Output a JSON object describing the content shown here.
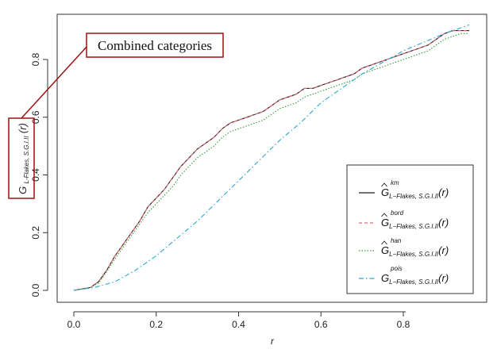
{
  "chart_data": {
    "type": "line",
    "title": "",
    "xlabel": "r",
    "ylabel": "G_{L-Flakes, S.G.I.II}(r)",
    "xlim": [
      -0.04,
      0.99
    ],
    "ylim": [
      -0.02,
      0.94
    ],
    "xticks": [
      0.0,
      0.2,
      0.4,
      0.6,
      0.8
    ],
    "yticks": [
      0.0,
      0.2,
      0.4,
      0.6,
      0.8
    ],
    "xtick_labels": [
      "0.0",
      "0.2",
      "0.4",
      "0.6",
      "0.8"
    ],
    "ytick_labels": [
      "0.0",
      "0.2",
      "0.4",
      "0.6",
      "0.8"
    ],
    "grid": false,
    "legend_position": "bottom-right",
    "series": [
      {
        "name": "km",
        "label_base": "G",
        "label_sub": "L−Flakes, S.G.I.II",
        "label_sup": "km",
        "label_arg": "(r)",
        "hat": true,
        "color": "#2a1a1a",
        "dash": "",
        "x": [
          0.0,
          0.02,
          0.04,
          0.06,
          0.08,
          0.1,
          0.12,
          0.14,
          0.16,
          0.18,
          0.2,
          0.22,
          0.24,
          0.26,
          0.28,
          0.3,
          0.32,
          0.34,
          0.36,
          0.38,
          0.4,
          0.42,
          0.44,
          0.46,
          0.48,
          0.5,
          0.52,
          0.54,
          0.56,
          0.58,
          0.6,
          0.62,
          0.64,
          0.66,
          0.68,
          0.7,
          0.72,
          0.74,
          0.76,
          0.78,
          0.8,
          0.82,
          0.84,
          0.86,
          0.88,
          0.9,
          0.92,
          0.94,
          0.96
        ],
        "y": [
          0.0,
          0.005,
          0.01,
          0.03,
          0.07,
          0.12,
          0.16,
          0.2,
          0.24,
          0.29,
          0.32,
          0.35,
          0.39,
          0.43,
          0.46,
          0.49,
          0.51,
          0.53,
          0.56,
          0.58,
          0.59,
          0.6,
          0.61,
          0.62,
          0.64,
          0.66,
          0.67,
          0.68,
          0.7,
          0.7,
          0.71,
          0.72,
          0.73,
          0.74,
          0.75,
          0.77,
          0.78,
          0.79,
          0.8,
          0.81,
          0.82,
          0.83,
          0.84,
          0.85,
          0.87,
          0.89,
          0.9,
          0.9,
          0.9
        ]
      },
      {
        "name": "bord",
        "label_base": "G",
        "label_sub": "L−Flakes, S.G.I.II",
        "label_sup": "bord",
        "label_arg": "(r)",
        "hat": true,
        "color": "#e06670",
        "dash": "4,3",
        "x": [
          0.0,
          0.02,
          0.04,
          0.06,
          0.08,
          0.1,
          0.12,
          0.14,
          0.16,
          0.18,
          0.2,
          0.22,
          0.24,
          0.26,
          0.28,
          0.3,
          0.32,
          0.34,
          0.36,
          0.38,
          0.4,
          0.42,
          0.44,
          0.46,
          0.48,
          0.5,
          0.52,
          0.54,
          0.56,
          0.58,
          0.6,
          0.62,
          0.64,
          0.66,
          0.68,
          0.7,
          0.72,
          0.74,
          0.76,
          0.78,
          0.8,
          0.82,
          0.84,
          0.86,
          0.88,
          0.9,
          0.92,
          0.94,
          0.96
        ],
        "y": [
          0.0,
          0.005,
          0.01,
          0.03,
          0.07,
          0.12,
          0.16,
          0.2,
          0.24,
          0.29,
          0.32,
          0.35,
          0.39,
          0.43,
          0.46,
          0.49,
          0.51,
          0.53,
          0.56,
          0.58,
          0.59,
          0.6,
          0.61,
          0.62,
          0.64,
          0.66,
          0.67,
          0.68,
          0.7,
          0.7,
          0.71,
          0.72,
          0.73,
          0.74,
          0.75,
          0.77,
          0.78,
          0.79,
          0.8,
          0.81,
          0.82,
          0.83,
          0.84,
          0.85,
          0.87,
          0.89,
          0.9,
          0.9,
          0.9
        ]
      },
      {
        "name": "han",
        "label_base": "G",
        "label_sub": "L−Flakes, S.G.I.II",
        "label_sup": "han",
        "label_arg": "(r)",
        "hat": true,
        "color": "#3a9a3a",
        "dash": "1.5,2",
        "x": [
          0.0,
          0.02,
          0.04,
          0.06,
          0.08,
          0.1,
          0.12,
          0.14,
          0.16,
          0.18,
          0.2,
          0.22,
          0.24,
          0.26,
          0.28,
          0.3,
          0.32,
          0.34,
          0.36,
          0.38,
          0.4,
          0.42,
          0.44,
          0.46,
          0.48,
          0.5,
          0.52,
          0.54,
          0.56,
          0.58,
          0.6,
          0.62,
          0.64,
          0.66,
          0.68,
          0.7,
          0.72,
          0.74,
          0.76,
          0.78,
          0.8,
          0.82,
          0.84,
          0.86,
          0.88,
          0.9,
          0.92,
          0.94,
          0.96
        ],
        "y": [
          0.0,
          0.005,
          0.01,
          0.025,
          0.065,
          0.11,
          0.15,
          0.19,
          0.23,
          0.27,
          0.3,
          0.33,
          0.36,
          0.4,
          0.43,
          0.46,
          0.48,
          0.5,
          0.53,
          0.55,
          0.56,
          0.57,
          0.58,
          0.59,
          0.61,
          0.63,
          0.64,
          0.65,
          0.67,
          0.68,
          0.69,
          0.7,
          0.71,
          0.72,
          0.73,
          0.75,
          0.76,
          0.77,
          0.78,
          0.79,
          0.8,
          0.81,
          0.82,
          0.83,
          0.85,
          0.87,
          0.88,
          0.89,
          0.89
        ]
      },
      {
        "name": "pois",
        "label_base": "G",
        "label_sub": "L−Flakes, S.G.I.II",
        "label_sup": "pois",
        "label_arg": "(r)",
        "hat": false,
        "color": "#2aa8d8",
        "dash": "6,3,1.5,3",
        "x": [
          0.0,
          0.05,
          0.1,
          0.15,
          0.2,
          0.25,
          0.3,
          0.35,
          0.4,
          0.45,
          0.5,
          0.55,
          0.6,
          0.65,
          0.7,
          0.75,
          0.8,
          0.85,
          0.9,
          0.96
        ],
        "y": [
          0.0,
          0.01,
          0.03,
          0.07,
          0.12,
          0.18,
          0.24,
          0.31,
          0.38,
          0.45,
          0.52,
          0.58,
          0.65,
          0.7,
          0.75,
          0.79,
          0.83,
          0.86,
          0.89,
          0.92
        ]
      }
    ],
    "annotation": {
      "text": "Combined categories",
      "box_color": "#a01010"
    }
  }
}
